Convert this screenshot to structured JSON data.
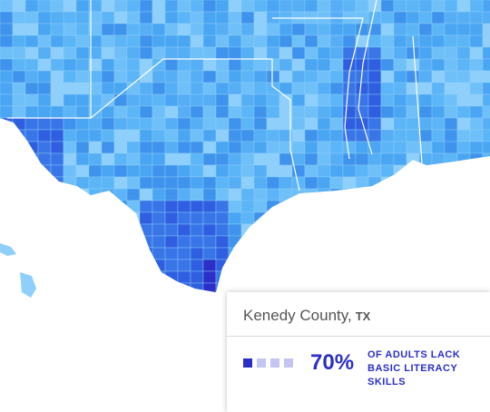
{
  "tooltip": {
    "county": "Kenedy County,",
    "state": "TX",
    "percent": "70%",
    "description": [
      "OF ADULTS LACK",
      "BASIC LITERACY",
      "SKILLS"
    ]
  }
}
